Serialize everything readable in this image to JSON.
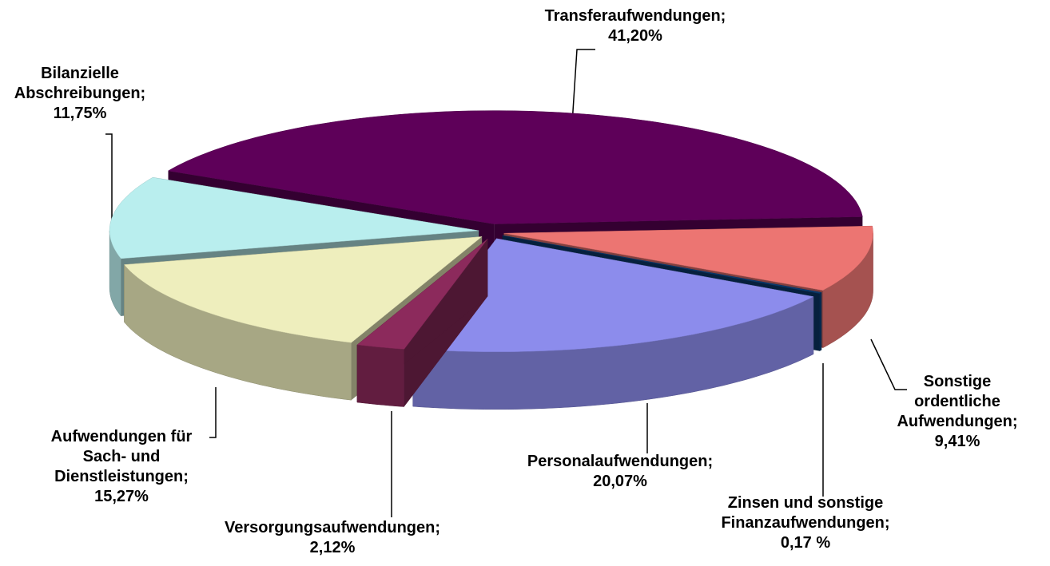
{
  "chart_data": {
    "type": "pie3d",
    "categories": [
      "Transferaufwendungen;",
      "Sonstige ordentliche Aufwendungen;",
      "Zinsen und sonstige Finanzaufwendungen;",
      "Personalaufwendungen;",
      "Versorgungsaufwendungen;",
      "Aufwendungen für Sach- und Dienstleistungen;",
      "Bilanzielle Abschreibungen;"
    ],
    "values": [
      41.2,
      9.41,
      0.17,
      20.07,
      2.12,
      15.27,
      11.75
    ],
    "value_labels": [
      "41,20%",
      "9,41%",
      "0,17 %",
      "20,07%",
      "2,12%",
      "15,27%",
      "11,75%"
    ],
    "colors": [
      "#5e0059",
      "#ec7572",
      "#0a3a6e",
      "#8c8cec",
      "#8c2a5c",
      "#eeeebd",
      "#b9eeee"
    ]
  }
}
